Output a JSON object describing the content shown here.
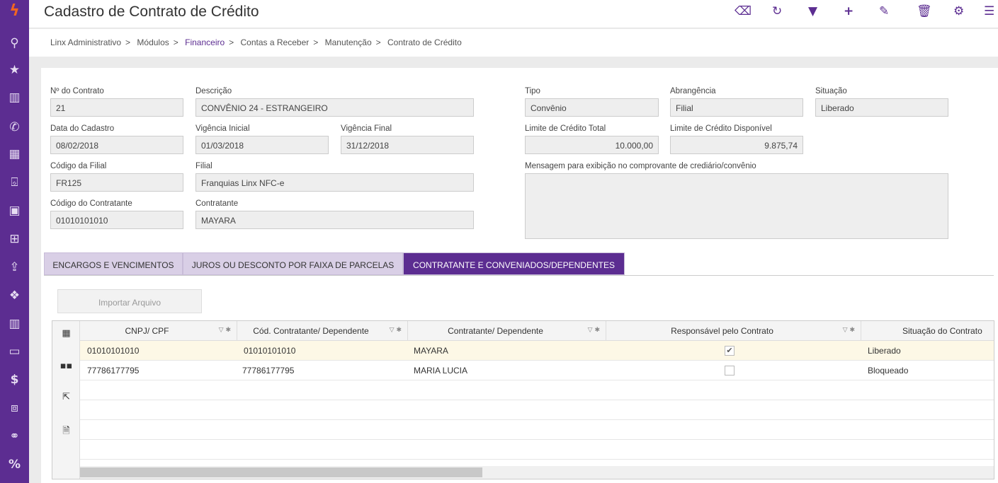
{
  "sidebar": {
    "icons": [
      "logo-icon",
      "search-icon",
      "star-icon",
      "chart-icon",
      "phone-icon",
      "grid-icon",
      "gift-icon",
      "contacts-icon",
      "basket-icon",
      "upload-icon",
      "dropbox-icon",
      "report-icon",
      "monitor-icon",
      "dollar-icon",
      "boxes-icon",
      "handshake-icon",
      "percent-icon"
    ]
  },
  "header": {
    "title": "Cadastro de Contrato de Crédito",
    "toolbar": [
      "eraser-icon",
      "refresh-icon",
      "filter-icon",
      "plus-icon",
      "edit-icon",
      "trash-icon",
      "gear-icon",
      "menu-icon"
    ]
  },
  "breadcrumb": [
    "Linx Administrativo",
    "Módulos",
    "Financeiro",
    "Contas a Receber",
    "Manutenção",
    "Contrato de Crédito"
  ],
  "form": {
    "numero": {
      "label": "Nº do Contrato",
      "value": "21"
    },
    "descricao": {
      "label": "Descrição",
      "value": "CONVÊNIO 24 - ESTRANGEIRO"
    },
    "data_cadastro": {
      "label": "Data do Cadastro",
      "value": "08/02/2018"
    },
    "vig_ini": {
      "label": "Vigência Inicial",
      "value": "01/03/2018"
    },
    "vig_fim": {
      "label": "Vigência Final",
      "value": "31/12/2018"
    },
    "cod_filial": {
      "label": "Código da Filial",
      "value": "FR125"
    },
    "filial": {
      "label": "Filial",
      "value": "Franquias Linx NFC-e"
    },
    "cod_contratante": {
      "label": "Código do Contratante",
      "value": "01010101010"
    },
    "contratante": {
      "label": "Contratante",
      "value": "MAYARA"
    },
    "tipo": {
      "label": "Tipo",
      "value": "Convênio"
    },
    "abrangencia": {
      "label": "Abrangência",
      "value": "Filial"
    },
    "situacao": {
      "label": "Situação",
      "value": "Liberado"
    },
    "lim_total": {
      "label": "Limite de Crédito Total",
      "value": "10.000,00"
    },
    "lim_disp": {
      "label": "Limite de Crédito Disponível",
      "value": "9.875,74"
    },
    "mensagem": {
      "label": "Mensagem para exibição no comprovante de crediário/convênio",
      "value": ""
    }
  },
  "tabs": [
    "ENCARGOS E VENCIMENTOS",
    "JUROS OU DESCONTO POR FAIXA DE PARCELAS",
    "CONTRATANTE E CONVENIADOS/DEPENDENTES"
  ],
  "active_tab": 2,
  "import_button": "Importar Arquivo",
  "grid": {
    "columns": [
      "CNPJ/ CPF",
      "Cód. Contratante/ Dependente",
      "Contratante/ Dependente",
      "Responsável pelo Contrato",
      "Situação do Contrato"
    ],
    "rows": [
      {
        "cnpj": "01010101010",
        "cod": "01010101010",
        "nome": "MAYARA",
        "responsavel": true,
        "situacao": "Liberado"
      },
      {
        "cnpj": "77786177795",
        "cod": "77786177795",
        "nome": "MARIA LUCIA",
        "responsavel": false,
        "situacao": "Bloqueado"
      }
    ],
    "selected_row": 0,
    "side_icons": [
      "column-chooser-icon",
      "layout-icon",
      "export-icon",
      "excel-icon"
    ]
  },
  "colors": {
    "brand": "#5c2d91",
    "selected_row": "#fdf8e6"
  }
}
